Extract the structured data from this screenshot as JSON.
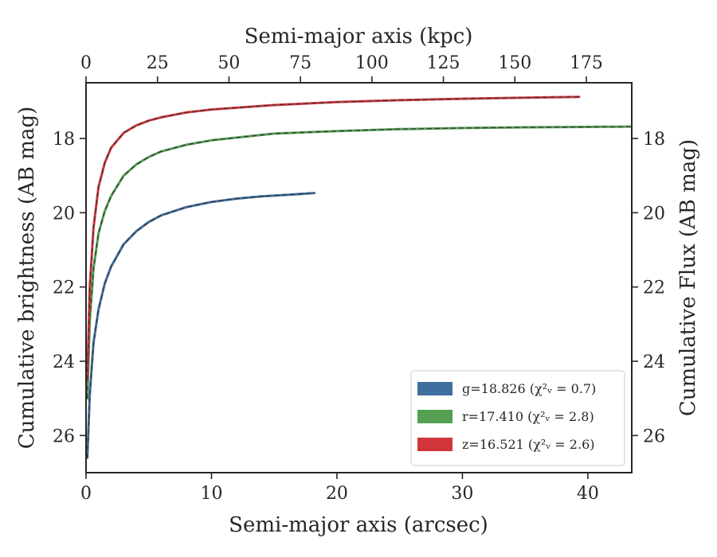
{
  "chart_data": {
    "type": "line",
    "xlabel": "Semi-major axis (arcsec)",
    "ylabel": "Cumulative brightness (AB mag)",
    "ylabel_right": "Cumulative Flux (AB mag)",
    "xlabel_top": "Semi-major axis (kpc)",
    "xlim": [
      0,
      43.5
    ],
    "ylim": [
      27.0,
      16.5
    ],
    "xlim_top": [
      0,
      190.9
    ],
    "x_ticks": [
      0,
      10,
      20,
      30,
      40
    ],
    "x_tick_labels": [
      "0",
      "10",
      "20",
      "30",
      "40"
    ],
    "x_top_ticks": [
      0,
      25,
      50,
      75,
      100,
      125,
      150,
      175
    ],
    "x_top_tick_labels": [
      "0",
      "25",
      "50",
      "75",
      "100",
      "125",
      "150",
      "175"
    ],
    "y_ticks": [
      18,
      20,
      22,
      24,
      26
    ],
    "y_tick_labels": [
      "18",
      "20",
      "22",
      "24",
      "26"
    ],
    "y_right_ticks": [
      18,
      20,
      22,
      24,
      26
    ],
    "y_right_tick_labels": [
      "18",
      "20",
      "22",
      "24",
      "26"
    ],
    "grid": false,
    "legend_position": "bottom-right",
    "series": [
      {
        "name": "g",
        "legend_label": "g=18.826 (χ²ᵥ = 0.7)",
        "color": "#3f6f9e",
        "x": [
          0.1,
          0.3,
          0.6,
          1.0,
          1.5,
          2.0,
          3.0,
          4.0,
          5.0,
          6.0,
          8.0,
          10.0,
          12.0,
          14.0,
          16.0,
          18.2
        ],
        "y": [
          26.6,
          24.9,
          23.5,
          22.6,
          21.9,
          21.45,
          20.85,
          20.5,
          20.25,
          20.07,
          19.85,
          19.71,
          19.62,
          19.56,
          19.52,
          19.47
        ]
      },
      {
        "name": "r",
        "legend_label": "r=17.410 (χ²ᵥ = 2.8)",
        "color": "#54a052",
        "x": [
          0.1,
          0.3,
          0.6,
          1.0,
          1.5,
          2.0,
          3.0,
          4.0,
          5.0,
          6.0,
          8.0,
          10.0,
          15.0,
          20.0,
          25.0,
          30.0,
          35.0,
          40.0,
          43.4
        ],
        "y": [
          25.0,
          22.9,
          21.5,
          20.55,
          19.95,
          19.55,
          19.0,
          18.7,
          18.5,
          18.35,
          18.17,
          18.05,
          17.87,
          17.8,
          17.75,
          17.72,
          17.7,
          17.69,
          17.68
        ]
      },
      {
        "name": "z",
        "legend_label": "z=16.521 (χ²ᵥ = 2.6)",
        "color": "#d1353a",
        "x": [
          0.1,
          0.3,
          0.6,
          1.0,
          1.5,
          2.0,
          3.0,
          4.0,
          5.0,
          6.0,
          8.0,
          10.0,
          15.0,
          20.0,
          25.0,
          30.0,
          35.0,
          39.3
        ],
        "y": [
          24.5,
          22.0,
          20.4,
          19.3,
          18.65,
          18.25,
          17.85,
          17.65,
          17.52,
          17.43,
          17.3,
          17.22,
          17.1,
          17.02,
          16.97,
          16.93,
          16.9,
          16.88
        ]
      }
    ]
  }
}
